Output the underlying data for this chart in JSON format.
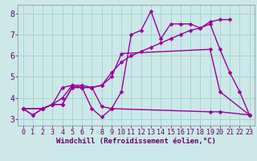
{
  "xlabel": "Windchill (Refroidissement éolien,°C)",
  "bg_color": "#cce8e8",
  "line_color": "#990099",
  "grid_color": "#99cccc",
  "xlim": [
    -0.5,
    23.5
  ],
  "ylim": [
    2.7,
    8.4
  ],
  "xticks": [
    0,
    1,
    2,
    3,
    4,
    5,
    6,
    7,
    8,
    9,
    10,
    11,
    12,
    13,
    14,
    15,
    16,
    17,
    18,
    19,
    20,
    21,
    22,
    23
  ],
  "yticks": [
    3,
    4,
    5,
    6,
    7,
    8
  ],
  "line1_x": [
    0,
    1,
    2,
    3,
    4,
    5,
    6,
    7,
    8,
    9,
    10,
    11,
    12,
    13,
    14,
    15,
    16,
    17,
    18,
    19,
    20,
    21
  ],
  "line1_y": [
    3.5,
    3.2,
    3.5,
    3.7,
    4.5,
    4.6,
    4.5,
    3.5,
    3.1,
    3.5,
    4.3,
    7.0,
    7.2,
    8.1,
    6.8,
    7.5,
    7.5,
    7.5,
    7.3,
    7.6,
    7.7,
    7.7
  ],
  "line2_x": [
    0,
    2,
    3,
    4,
    5,
    6,
    7,
    8,
    9,
    19,
    20,
    23
  ],
  "line2_y": [
    3.5,
    3.5,
    3.7,
    3.7,
    4.5,
    4.5,
    4.5,
    3.6,
    3.5,
    3.35,
    3.35,
    3.2
  ],
  "line3_x": [
    0,
    2,
    3,
    4,
    5,
    6,
    7,
    8,
    9,
    10,
    19,
    20,
    23
  ],
  "line3_y": [
    3.5,
    3.5,
    3.7,
    3.7,
    4.5,
    4.5,
    4.5,
    4.6,
    5.0,
    6.1,
    6.3,
    4.3,
    3.2
  ],
  "line4_x": [
    0,
    1,
    2,
    3,
    4,
    5,
    6,
    7,
    8,
    9,
    10,
    11,
    12,
    13,
    14,
    15,
    16,
    17,
    18,
    19,
    20,
    21,
    22,
    23
  ],
  "line4_y": [
    3.5,
    3.2,
    3.5,
    3.7,
    4.0,
    4.6,
    4.6,
    4.5,
    4.6,
    5.2,
    5.7,
    6.0,
    6.2,
    6.4,
    6.6,
    6.8,
    7.0,
    7.2,
    7.3,
    7.5,
    6.3,
    5.2,
    4.3,
    3.2
  ],
  "markersize": 2.5,
  "linewidth": 1.0,
  "xlabel_fontsize": 6.5,
  "tick_fontsize": 6
}
